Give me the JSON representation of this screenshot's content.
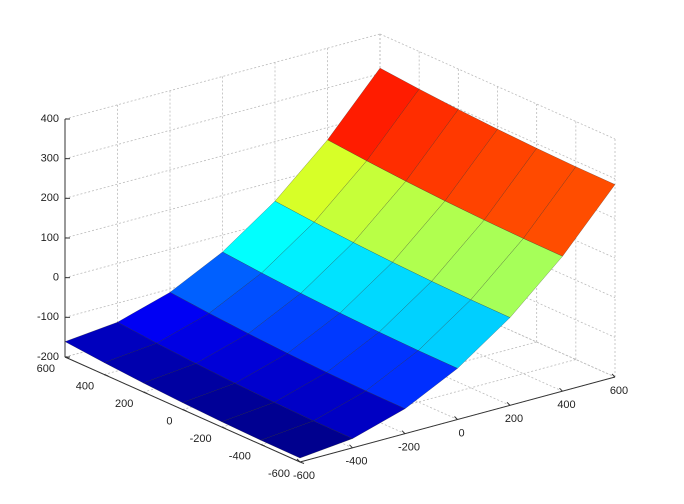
{
  "chart_data": {
    "type": "surface",
    "colormap": "jet",
    "grid": true,
    "x": [
      -600,
      -400,
      -200,
      0,
      200,
      400,
      600
    ],
    "y": [
      -600,
      -400,
      -200,
      0,
      200,
      400,
      600
    ],
    "z": [
      [
        -190,
        -176.8,
        -137.2,
        -71.2,
        21.2,
        140,
        285.2
      ],
      [
        -189.2,
        -176,
        -136.4,
        -70.4,
        22,
        140.8,
        286
      ],
      [
        -186.8,
        -173.6,
        -134,
        -68,
        24.4,
        143.2,
        288.4
      ],
      [
        -182.8,
        -169.6,
        -130,
        -64,
        28.4,
        147.2,
        292.4
      ],
      [
        -177.2,
        -164,
        -124.4,
        -58.4,
        34,
        152.8,
        298
      ],
      [
        -170,
        -156.8,
        -117.2,
        -51.2,
        41.2,
        160,
        305.2
      ],
      [
        -161.2,
        -148,
        -108.4,
        -42.4,
        50,
        168.8,
        314
      ]
    ],
    "xlim": [
      -600,
      600
    ],
    "ylim": [
      -600,
      600
    ],
    "zlim": [
      -200,
      400
    ],
    "xticks": [
      -600,
      -400,
      -200,
      0,
      200,
      400,
      600
    ],
    "yticks": [
      -600,
      -400,
      -200,
      0,
      200,
      400,
      600
    ],
    "zticks": [
      -200,
      -100,
      0,
      100,
      200,
      300,
      400
    ]
  }
}
